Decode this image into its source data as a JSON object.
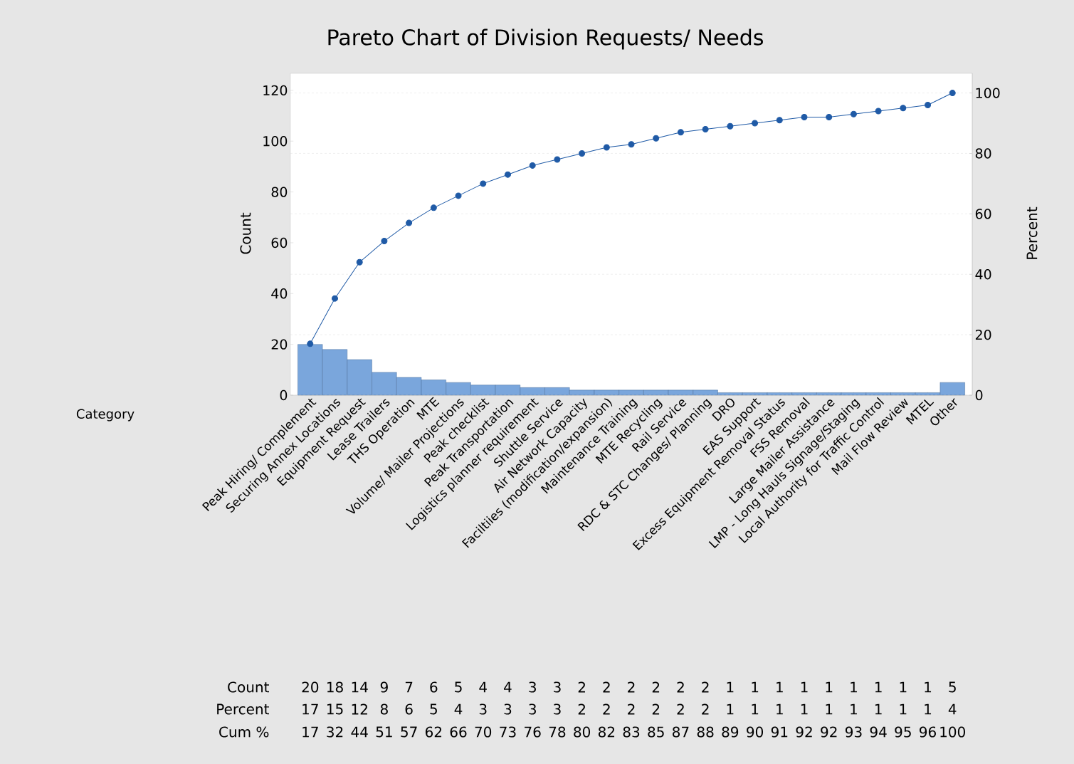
{
  "chart_data": {
    "type": "bar",
    "title": "Pareto Chart of Division Requests/ Needs",
    "ylabel": "Count",
    "y2label": "Percent",
    "categories": [
      "Peak Hiring/ Complement",
      "Securing Annex Locations",
      "Equipment Request",
      "Lease Trailers",
      "THS Operation",
      "MTE",
      "Volume/ Mailer Projections",
      "Peak checklist",
      "Peak Transportation",
      "Logistics planner requirement",
      "Shuttle Service",
      "Air Network Capacity",
      "Faciltiies (modification/expansion)",
      "Maintenance Training",
      "MTE Recycling",
      "Rail Service",
      "RDC & STC Changes/ Planning",
      "DRO",
      "EAS Support",
      "Excess Equipment Removal Status",
      "FSS Removal",
      "Large Mailer Assistance",
      "LMP - Long Hauls Signage/Staging",
      "Local Authority for Traffic Control",
      "Mail Flow Review",
      "MTEL",
      "Other"
    ],
    "series": [
      {
        "color": "#7aa6dc",
        "values": [
          20,
          18,
          14,
          9,
          7,
          6,
          5,
          4,
          4,
          3,
          3,
          2,
          2,
          2,
          2,
          2,
          2,
          1,
          1,
          1,
          1,
          1,
          1,
          1,
          1,
          1,
          5
        ]
      },
      {
        "type": "line",
        "axis": "y2",
        "color": "#1f5aa6",
        "values": [
          17,
          32,
          44,
          51,
          57,
          62,
          66,
          70,
          73,
          76,
          78,
          80,
          82,
          83,
          85,
          87,
          88,
          89,
          90,
          91,
          92,
          92,
          93,
          94,
          95,
          96,
          100
        ]
      }
    ],
    "annotations": [
      "Category",
      "Count",
      "Percent",
      "Cum %",
      "17",
      "15",
      "12",
      "8",
      "6",
      "5",
      "4",
      "3",
      "3",
      "3",
      "3",
      "2",
      "2",
      "2",
      "2",
      "2",
      "2",
      "1",
      "1",
      "1",
      "1",
      "1",
      "1",
      "1",
      "1",
      "1",
      "4"
    ],
    "ylim": [
      0,
      126.7
    ],
    "yticks": [
      0,
      20,
      40,
      60,
      80,
      100,
      120
    ],
    "y2lim": [
      0,
      106.5
    ],
    "y2ticks": [
      0,
      20,
      40,
      60,
      80,
      100
    ],
    "grid": "y2",
    "marker": "circle",
    "data_labels": true
  }
}
